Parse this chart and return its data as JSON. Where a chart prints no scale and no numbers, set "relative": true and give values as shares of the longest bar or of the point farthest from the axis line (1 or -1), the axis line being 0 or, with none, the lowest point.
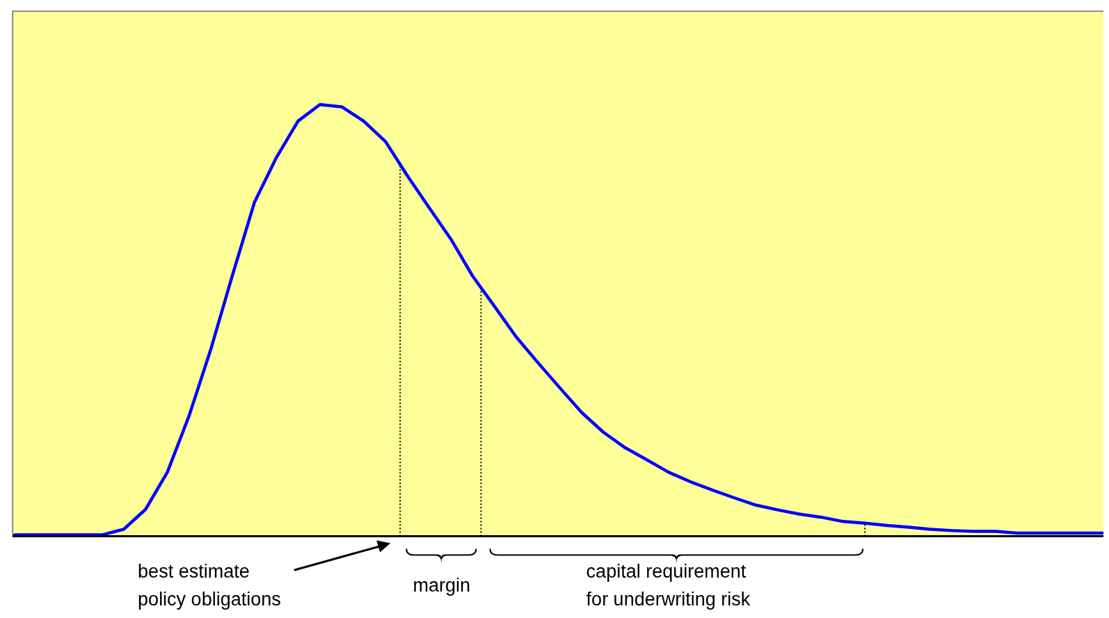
{
  "chart_data": {
    "type": "line",
    "relative": true,
    "categories": [
      null,
      null,
      null,
      null,
      null,
      null,
      null,
      null,
      null,
      null,
      null,
      null,
      null,
      null,
      null,
      null,
      null,
      null,
      null,
      null,
      null,
      null,
      null,
      null,
      null,
      null,
      null,
      null,
      null,
      null,
      null,
      null,
      null,
      null,
      null,
      null,
      null,
      null,
      null,
      null,
      null,
      null,
      null,
      null,
      null,
      null,
      null,
      null,
      null,
      null,
      null
    ],
    "series": [
      {
        "color": "#0000ff",
        "values": [
          0.003,
          0.003,
          0.003,
          0.003,
          0.003,
          0.016,
          0.062,
          0.148,
          0.279,
          0.434,
          0.607,
          0.774,
          0.877,
          0.962,
          1.0,
          0.995,
          0.962,
          0.915,
          0.836,
          0.762,
          0.689,
          0.603,
          0.533,
          0.462,
          0.402,
          0.344,
          0.287,
          0.241,
          0.205,
          0.177,
          0.148,
          0.126,
          0.107,
          0.089,
          0.072,
          0.061,
          0.051,
          0.044,
          0.034,
          0.03,
          0.025,
          0.021,
          0.016,
          0.013,
          0.011,
          0.011,
          0.007,
          0.007,
          0.007,
          0.007,
          0.007
        ]
      }
    ],
    "annotations": [
      "best estimate\npolicy obligations",
      "margin",
      "capital requirement\nfor underwriting risk"
    ]
  }
}
